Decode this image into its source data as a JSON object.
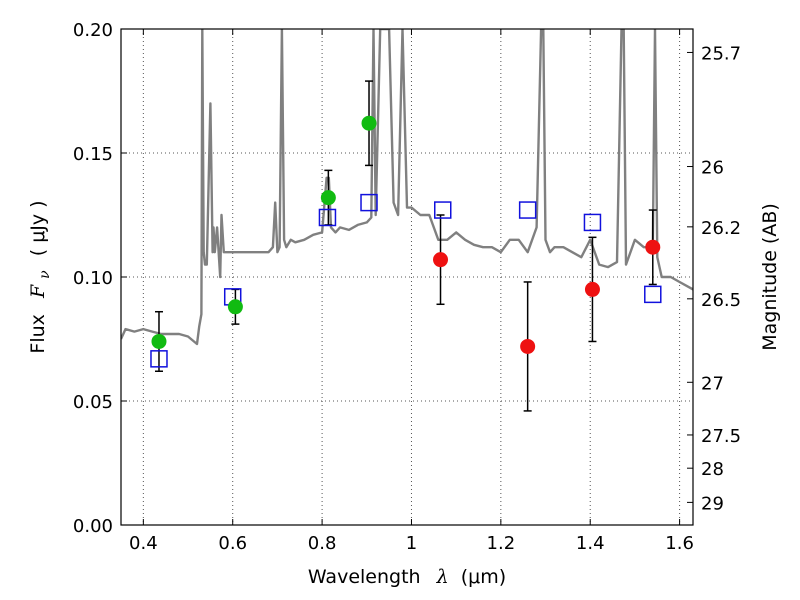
{
  "chart_data": {
    "type": "scatter",
    "title": "",
    "xlabel": {
      "text": "Wavelength",
      "symbol": "λ",
      "unit": "(μm)"
    },
    "ylabel": {
      "text": "Flux",
      "symbol": "F",
      "subscript": "ν",
      "unit": "( μJy )"
    },
    "y2label": "Magnitude (AB)",
    "xlim": [
      0.35,
      1.63
    ],
    "ylim": [
      0.0,
      0.2
    ],
    "grid": true,
    "xticks": [
      {
        "v": 0.4,
        "label": "0.4"
      },
      {
        "v": 0.6,
        "label": "0.6"
      },
      {
        "v": 0.8,
        "label": "0.8"
      },
      {
        "v": 1.0,
        "label": "1"
      },
      {
        "v": 1.2,
        "label": "1.2"
      },
      {
        "v": 1.4,
        "label": "1.4"
      },
      {
        "v": 1.6,
        "label": "1.6"
      }
    ],
    "yticks": [
      {
        "v": 0.0,
        "label": "0.00"
      },
      {
        "v": 0.05,
        "label": "0.05"
      },
      {
        "v": 0.1,
        "label": "0.10"
      },
      {
        "v": 0.15,
        "label": "0.15"
      },
      {
        "v": 0.2,
        "label": "0.20"
      }
    ],
    "y2ticks": [
      {
        "label": "25.7",
        "mag": 25.7
      },
      {
        "label": "26",
        "mag": 26.0
      },
      {
        "label": "26.2",
        "mag": 26.2
      },
      {
        "label": "26.5",
        "mag": 26.5
      },
      {
        "label": "27",
        "mag": 27.0
      },
      {
        "label": "27.5",
        "mag": 27.5
      },
      {
        "label": "28",
        "mag": 28.0
      },
      {
        "label": "29",
        "mag": 29.0
      }
    ],
    "colors": {
      "spectrum": "#808080",
      "optical_points": "#11bb11",
      "nir_points": "#ee1111",
      "model_boxes": "#1111dd",
      "errorbars": "#000000",
      "grid": "#555555"
    },
    "series": [
      {
        "name": "model spectrum",
        "kind": "line",
        "x": [
          0.35,
          0.36,
          0.38,
          0.4,
          0.42,
          0.44,
          0.46,
          0.48,
          0.5,
          0.52,
          0.525,
          0.53,
          0.532,
          0.535,
          0.538,
          0.542,
          0.55,
          0.555,
          0.557,
          0.56,
          0.565,
          0.572,
          0.575,
          0.58,
          0.59,
          0.6,
          0.62,
          0.64,
          0.66,
          0.68,
          0.69,
          0.695,
          0.7,
          0.705,
          0.71,
          0.715,
          0.72,
          0.73,
          0.74,
          0.76,
          0.78,
          0.8,
          0.81,
          0.815,
          0.82,
          0.83,
          0.84,
          0.86,
          0.88,
          0.9,
          0.91,
          0.915,
          0.92,
          0.93,
          0.94,
          0.95,
          0.96,
          0.97,
          0.98,
          0.99,
          1.0,
          1.02,
          1.04,
          1.06,
          1.08,
          1.1,
          1.12,
          1.14,
          1.16,
          1.18,
          1.2,
          1.22,
          1.24,
          1.26,
          1.28,
          1.29,
          1.295,
          1.3,
          1.31,
          1.32,
          1.34,
          1.36,
          1.38,
          1.4,
          1.42,
          1.44,
          1.46,
          1.47,
          1.475,
          1.48,
          1.5,
          1.52,
          1.54,
          1.545,
          1.55,
          1.56,
          1.58,
          1.6,
          1.63
        ],
        "y": [
          0.075,
          0.079,
          0.078,
          0.079,
          0.078,
          0.077,
          0.077,
          0.077,
          0.076,
          0.073,
          0.08,
          0.085,
          0.2,
          0.11,
          0.105,
          0.105,
          0.17,
          0.11,
          0.12,
          0.11,
          0.12,
          0.1,
          0.125,
          0.11,
          0.11,
          0.11,
          0.11,
          0.11,
          0.11,
          0.11,
          0.112,
          0.13,
          0.11,
          0.112,
          0.2,
          0.115,
          0.112,
          0.115,
          0.114,
          0.115,
          0.117,
          0.118,
          0.14,
          0.14,
          0.12,
          0.118,
          0.12,
          0.119,
          0.121,
          0.122,
          0.124,
          0.2,
          0.125,
          0.2,
          0.2,
          0.2,
          0.13,
          0.125,
          0.2,
          0.128,
          0.128,
          0.125,
          0.125,
          0.115,
          0.115,
          0.118,
          0.115,
          0.113,
          0.112,
          0.112,
          0.11,
          0.115,
          0.115,
          0.11,
          0.12,
          0.2,
          0.2,
          0.115,
          0.11,
          0.112,
          0.112,
          0.11,
          0.108,
          0.115,
          0.105,
          0.104,
          0.106,
          0.2,
          0.2,
          0.105,
          0.115,
          0.112,
          0.112,
          0.2,
          0.108,
          0.1,
          0.1,
          0.098,
          0.095
        ]
      },
      {
        "name": "optical photometry",
        "kind": "points",
        "x": [
          0.435,
          0.606,
          0.814,
          0.905
        ],
        "y": [
          0.074,
          0.088,
          0.132,
          0.162
        ],
        "err": [
          0.012,
          0.007,
          0.011,
          0.017
        ]
      },
      {
        "name": "near-infrared photometry",
        "kind": "points",
        "x": [
          1.065,
          1.26,
          1.405,
          1.54
        ],
        "y": [
          0.107,
          0.072,
          0.095,
          0.112
        ],
        "err": [
          0.018,
          0.026,
          0.021,
          0.015
        ]
      },
      {
        "name": "model photometry",
        "kind": "boxes",
        "x": [
          0.435,
          0.6,
          0.812,
          0.905,
          1.07,
          1.26,
          1.405,
          1.54
        ],
        "y": [
          0.067,
          0.092,
          0.124,
          0.13,
          0.127,
          0.127,
          0.122,
          0.093
        ]
      }
    ]
  }
}
